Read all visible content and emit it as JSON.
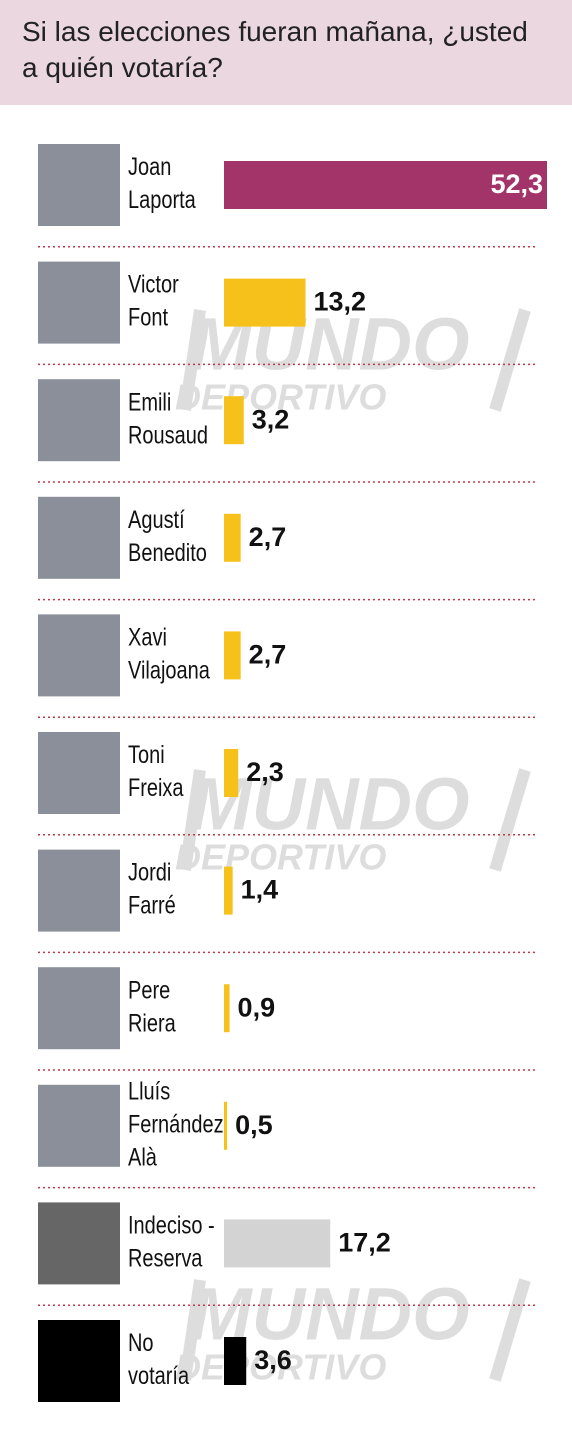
{
  "chart_data": {
    "type": "bar",
    "orientation": "horizontal",
    "title": "Si las elecciones fueran mañana, ¿usted a quién votaría?",
    "watermark": [
      "MUNDO",
      "DEPORTIVO"
    ],
    "categories": [
      [
        "Joan",
        "Laporta"
      ],
      [
        "Victor",
        "Font"
      ],
      [
        "Emili",
        "Rousaud"
      ],
      [
        "Agustí",
        "Benedito"
      ],
      [
        "Xavi",
        "Vilajoana"
      ],
      [
        "Toni",
        "Freixa"
      ],
      [
        "Jordi",
        "Farré"
      ],
      [
        "Pere",
        "Riera"
      ],
      [
        "Lluís",
        "Fernández",
        "Alà"
      ],
      [
        "Indeciso -",
        "Reserva"
      ],
      [
        "No",
        "votaría"
      ]
    ],
    "values": [
      52.3,
      13.2,
      3.2,
      2.7,
      2.7,
      2.3,
      1.4,
      0.9,
      0.5,
      17.2,
      3.6
    ],
    "value_labels": [
      "52,3",
      "13,2",
      "3,2",
      "2,7",
      "2,7",
      "2,3",
      "1,4",
      "0,9",
      "0,5",
      "17,2",
      "3,6"
    ],
    "colors": [
      "#a3346a",
      "#f6c11a",
      "#f6c11a",
      "#f6c11a",
      "#f6c11a",
      "#f6c11a",
      "#f6c11a",
      "#f6c11a",
      "#f6c11a",
      "#d3d3d3",
      "#000000"
    ]
  }
}
